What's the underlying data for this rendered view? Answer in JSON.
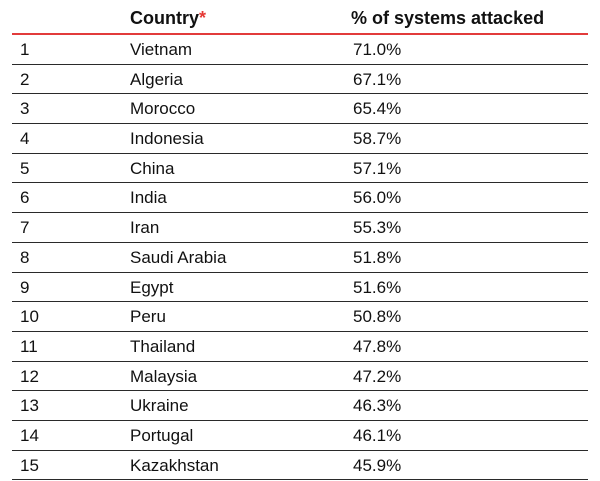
{
  "table": {
    "headers": {
      "rank": "",
      "country": "Country",
      "country_marker": "*",
      "percent": "% of systems attacked"
    },
    "rows": [
      {
        "rank": "1",
        "country": "Vietnam",
        "percent": "71.0%"
      },
      {
        "rank": "2",
        "country": "Algeria",
        "percent": "67.1%"
      },
      {
        "rank": "3",
        "country": "Morocco",
        "percent": "65.4%"
      },
      {
        "rank": "4",
        "country": "Indonesia",
        "percent": "58.7%"
      },
      {
        "rank": "5",
        "country": "China",
        "percent": "57.1%"
      },
      {
        "rank": "6",
        "country": "India",
        "percent": "56.0%"
      },
      {
        "rank": "7",
        "country": "Iran",
        "percent": "55.3%"
      },
      {
        "rank": "8",
        "country": "Saudi Arabia",
        "percent": "51.8%"
      },
      {
        "rank": "9",
        "country": "Egypt",
        "percent": "51.6%"
      },
      {
        "rank": "10",
        "country": "Peru",
        "percent": "50.8%"
      },
      {
        "rank": "11",
        "country": "Thailand",
        "percent": "47.8%"
      },
      {
        "rank": "12",
        "country": "Malaysia",
        "percent": "47.2%"
      },
      {
        "rank": "13",
        "country": "Ukraine",
        "percent": "46.3%"
      },
      {
        "rank": "14",
        "country": "Portugal",
        "percent": "46.1%"
      },
      {
        "rank": "15",
        "country": "Kazakhstan",
        "percent": "45.9%"
      }
    ]
  },
  "colors": {
    "header_rule": "#e23b3b",
    "asterisk": "#e53935",
    "row_rule": "#2a2a2a"
  }
}
